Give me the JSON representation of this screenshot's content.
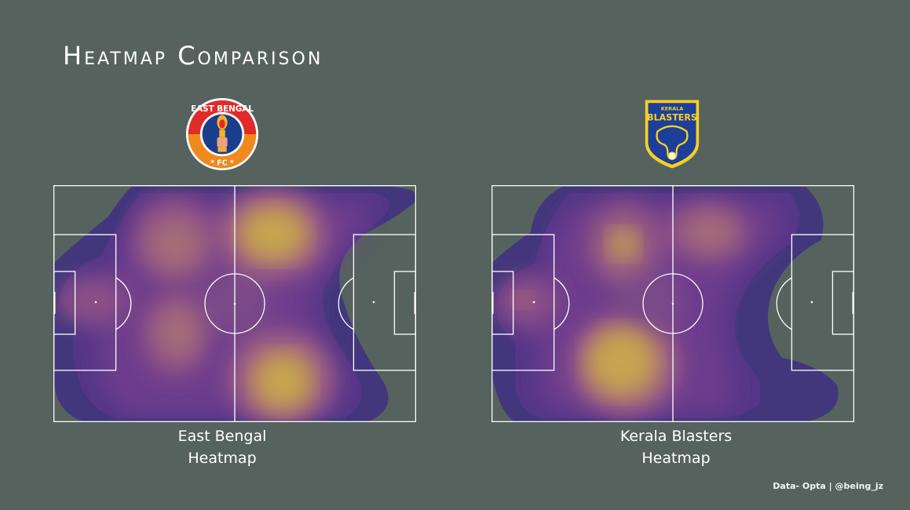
{
  "title": "Heatmap Comparison",
  "teams": [
    {
      "logo_name": "East Bengal FC crest",
      "logo_text": [
        "EAST BENGAL",
        "FC"
      ],
      "caption_line1": "East Bengal",
      "caption_line2": "Heatmap"
    },
    {
      "logo_name": "Kerala Blasters crest",
      "logo_text": [
        "KERALA",
        "BLASTERS"
      ],
      "caption_line1": "Kerala Blasters",
      "caption_line2": "Heatmap"
    }
  ],
  "source": "Data- Opta | @being_jz",
  "colors": {
    "background": "#56625e",
    "pitch_lines": "#ffffff",
    "density_low": "#41357e",
    "density_high": "#c9ad4a"
  },
  "chart_data": [
    {
      "type": "heatmap",
      "title": "East Bengal Heatmap",
      "x_range": [
        0,
        100
      ],
      "y_range": [
        0,
        100
      ],
      "hotspots": [
        {
          "x": 62,
          "y": 20,
          "intensity": 1.0
        },
        {
          "x": 64,
          "y": 82,
          "intensity": 1.0
        },
        {
          "x": 34,
          "y": 23,
          "intensity": 0.72
        },
        {
          "x": 34,
          "y": 62,
          "intensity": 0.7
        },
        {
          "x": 11,
          "y": 49,
          "intensity": 0.6
        },
        {
          "x": 50,
          "y": 50,
          "intensity": 0.55
        }
      ]
    },
    {
      "type": "heatmap",
      "title": "Kerala Blasters Heatmap",
      "x_range": [
        0,
        100
      ],
      "y_range": [
        0,
        100
      ],
      "hotspots": [
        {
          "x": 37,
          "y": 77,
          "intensity": 1.0
        },
        {
          "x": 37,
          "y": 25,
          "intensity": 0.8
        },
        {
          "x": 60,
          "y": 19,
          "intensity": 0.75
        },
        {
          "x": 9,
          "y": 50,
          "intensity": 0.65
        },
        {
          "x": 43,
          "y": 50,
          "intensity": 0.55
        }
      ]
    }
  ]
}
